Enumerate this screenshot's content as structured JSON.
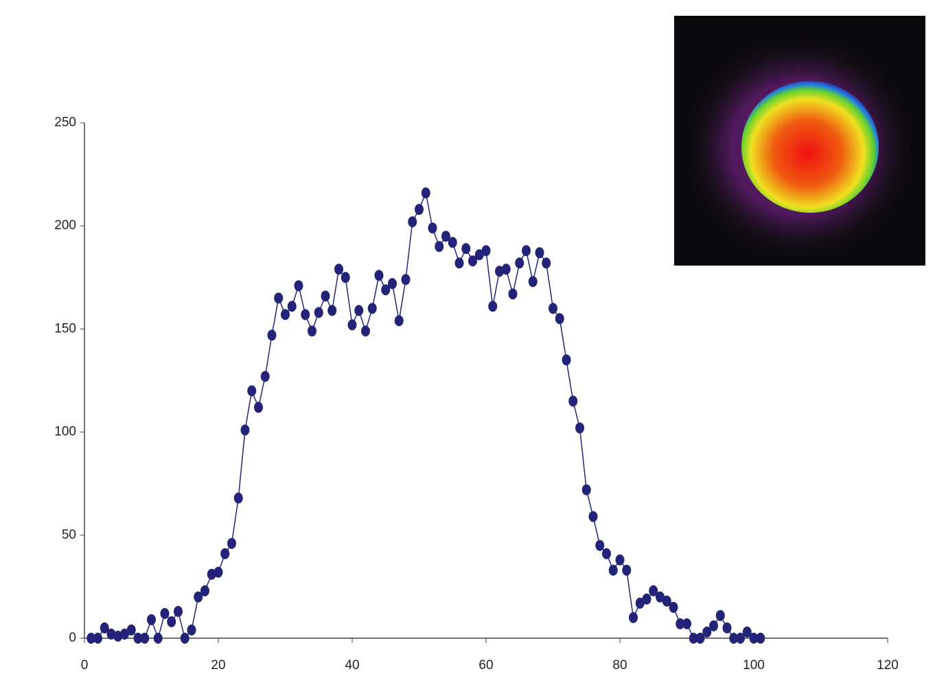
{
  "chart_data": {
    "type": "line",
    "x": [
      1,
      2,
      3,
      4,
      5,
      6,
      7,
      8,
      9,
      10,
      11,
      12,
      13,
      14,
      15,
      16,
      17,
      18,
      19,
      20,
      21,
      22,
      23,
      24,
      25,
      26,
      27,
      28,
      29,
      30,
      31,
      32,
      33,
      34,
      35,
      36,
      37,
      38,
      39,
      40,
      41,
      42,
      43,
      44,
      45,
      46,
      47,
      48,
      49,
      50,
      51,
      52,
      53,
      54,
      55,
      56,
      57,
      58,
      59,
      60,
      61,
      62,
      63,
      64,
      65,
      66,
      67,
      68,
      69,
      70,
      71,
      72,
      73,
      74,
      75,
      76,
      77,
      78,
      79,
      80,
      81,
      82,
      83,
      84,
      85,
      86,
      87,
      88,
      89,
      90,
      91,
      92,
      93,
      94,
      95,
      96,
      97,
      98,
      99,
      100,
      101
    ],
    "values": [
      0,
      0,
      5,
      2,
      1,
      2,
      4,
      0,
      0,
      9,
      0,
      12,
      8,
      13,
      0,
      4,
      20,
      23,
      31,
      32,
      41,
      46,
      68,
      101,
      120,
      112,
      127,
      147,
      165,
      157,
      161,
      171,
      157,
      149,
      158,
      166,
      159,
      179,
      175,
      152,
      159,
      149,
      160,
      176,
      169,
      172,
      154,
      174,
      202,
      208,
      216,
      199,
      190,
      195,
      192,
      182,
      189,
      183,
      186,
      188,
      161,
      178,
      179,
      167,
      182,
      188,
      173,
      187,
      182,
      160,
      155,
      135,
      115,
      102,
      72,
      59,
      45,
      41,
      33,
      38,
      33,
      10,
      17,
      19,
      23,
      20,
      18,
      15,
      7,
      7,
      0,
      0,
      3,
      6,
      11,
      5,
      0,
      0,
      3,
      0,
      0
    ],
    "color": "#232378",
    "xlim": [
      0,
      120
    ],
    "xticks": [
      0,
      20,
      40,
      60,
      80,
      100,
      120
    ],
    "ylim": [
      0,
      250
    ],
    "yticks": [
      0,
      50,
      100,
      150,
      200,
      250
    ]
  }
}
